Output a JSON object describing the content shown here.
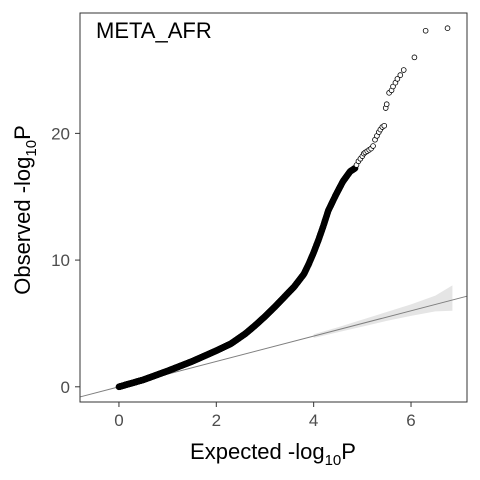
{
  "chart_data": {
    "type": "scatter",
    "title": "META_AFR",
    "xlabel": {
      "base": "Expected -log",
      "subscript": "10",
      "suffix": "P"
    },
    "ylabel": {
      "base": "Observed -log",
      "subscript": "10",
      "suffix": "P"
    },
    "xlim": [
      -0.8,
      7.15
    ],
    "ylim": [
      -1.2,
      29.5
    ],
    "xticks": [
      0,
      2,
      4,
      6
    ],
    "yticks": [
      0,
      10,
      20
    ],
    "xtick_labels": [
      "0",
      "2",
      "4",
      "6"
    ],
    "ytick_labels": [
      "0",
      "10",
      "20"
    ],
    "grid": false,
    "legend": "none",
    "marker": "open-circle",
    "colors": {
      "points": "#000000",
      "reference_line": "#7f7f7f",
      "confidence_band": "#e5e5e5",
      "axis_text": "#4d4d4d"
    },
    "reference_line": {
      "x": [
        -0.8,
        7.15
      ],
      "y": [
        -0.8,
        7.15
      ]
    },
    "confidence_band": {
      "x": [
        4.0,
        4.5,
        5.0,
        5.5,
        6.0,
        6.5,
        6.85
      ],
      "lower": [
        3.85,
        4.3,
        4.75,
        5.2,
        5.6,
        5.95,
        6.0
      ],
      "upper": [
        4.15,
        4.7,
        5.3,
        5.9,
        6.5,
        7.2,
        8.0
      ]
    },
    "dense_curve": {
      "x": [
        0,
        0.5,
        1.0,
        1.5,
        2.0,
        2.3,
        2.6,
        2.8,
        3.0,
        3.2,
        3.4,
        3.6,
        3.8,
        3.9,
        4.0,
        4.1,
        4.2,
        4.3,
        4.45,
        4.6,
        4.75,
        4.85
      ],
      "y": [
        0,
        0.55,
        1.25,
        2.0,
        2.85,
        3.4,
        4.2,
        4.85,
        5.55,
        6.3,
        7.1,
        7.9,
        8.9,
        9.7,
        10.6,
        11.6,
        12.7,
        13.9,
        15.1,
        16.2,
        17.0,
        17.25
      ]
    },
    "tail_points": {
      "x": [
        4.88,
        4.92,
        4.96,
        5.0,
        5.03,
        5.06,
        5.1,
        5.14,
        5.18,
        5.22,
        5.26,
        5.3,
        5.34,
        5.37,
        5.41,
        5.45,
        5.48,
        5.5,
        5.55,
        5.6,
        5.63,
        5.68,
        5.72,
        5.78,
        5.85,
        6.07,
        6.3,
        6.75
      ],
      "y": [
        17.5,
        17.8,
        18.0,
        18.2,
        18.4,
        18.5,
        18.6,
        18.7,
        18.8,
        19.0,
        19.5,
        19.8,
        20.1,
        20.3,
        20.5,
        20.6,
        22.0,
        22.3,
        23.2,
        23.4,
        23.7,
        24.0,
        24.3,
        24.6,
        25.0,
        26.0,
        28.1,
        28.3
      ]
    }
  }
}
